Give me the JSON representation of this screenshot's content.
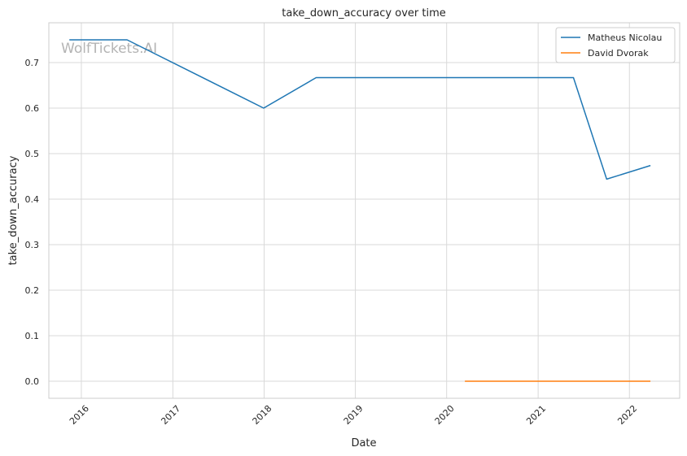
{
  "chart_data": {
    "type": "line",
    "title": "take_down_accuracy over time",
    "xlabel": "Date",
    "ylabel": "take_down_accuracy",
    "x_ticks": [
      "2016",
      "2017",
      "2018",
      "2019",
      "2020",
      "2021",
      "2022"
    ],
    "y_ticks": [
      "0.0",
      "0.1",
      "0.2",
      "0.3",
      "0.4",
      "0.5",
      "0.6",
      "0.7"
    ],
    "xlim": [
      "2015-08-24",
      "2022-07-21"
    ],
    "ylim": [
      -0.0375,
      0.7875
    ],
    "grid": true,
    "legend_position": "top-right",
    "watermark": "WolfTickets.AI",
    "series": [
      {
        "name": "Matheus Nicolau",
        "color": "#1f77b4",
        "points": [
          {
            "x": "2015-11-14",
            "y": 0.75
          },
          {
            "x": "2016-07-02",
            "y": 0.75
          },
          {
            "x": "2017-12-30",
            "y": 0.6
          },
          {
            "x": "2018-07-28",
            "y": 0.667
          },
          {
            "x": "2021-05-22",
            "y": 0.667
          },
          {
            "x": "2021-10-02",
            "y": 0.444
          },
          {
            "x": "2022-03-26",
            "y": 0.474
          }
        ]
      },
      {
        "name": "David Dvorak",
        "color": "#ff7f0e",
        "points": [
          {
            "x": "2020-03-14",
            "y": 0.0
          },
          {
            "x": "2022-03-26",
            "y": 0.0
          }
        ]
      }
    ]
  }
}
